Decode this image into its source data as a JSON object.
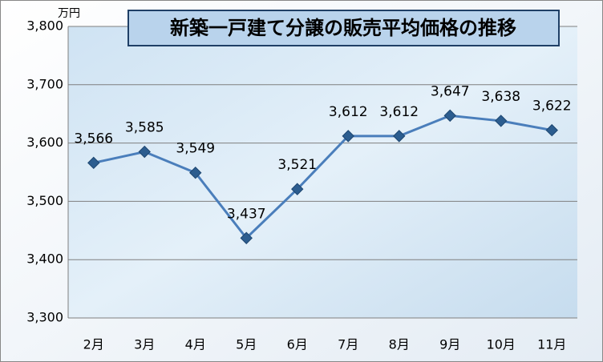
{
  "chart_data": {
    "type": "line",
    "title": "新築一戸建て分譲の販売平均価格の推移",
    "y_unit": "万円",
    "categories": [
      "2月",
      "3月",
      "4月",
      "5月",
      "6月",
      "7月",
      "8月",
      "9月",
      "10月",
      "11月"
    ],
    "series": [
      {
        "name": "販売平均価格",
        "color": "#4a7ebb",
        "values": [
          3566,
          3585,
          3549,
          3437,
          3521,
          3612,
          3612,
          3647,
          3638,
          3622
        ],
        "value_labels": [
          "3,566",
          "3,585",
          "3,549",
          "3,437",
          "3,521",
          "3,612",
          "3,612",
          "3,647",
          "3,638",
          "3,622"
        ]
      }
    ],
    "ylim": [
      3300,
      3800
    ],
    "yticks": [
      {
        "value": 3300,
        "label": "3,300"
      },
      {
        "value": 3400,
        "label": "3,400"
      },
      {
        "value": 3500,
        "label": "3,500"
      },
      {
        "value": 3600,
        "label": "3,600"
      },
      {
        "value": 3700,
        "label": "3,700"
      },
      {
        "value": 3800,
        "label": "3,800"
      }
    ],
    "grid": true
  }
}
